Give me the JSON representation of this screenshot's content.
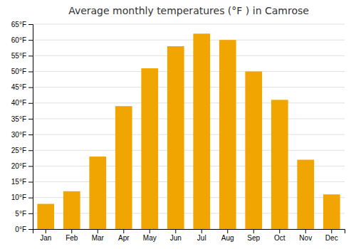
{
  "chart_data": {
    "type": "bar",
    "title": "Average monthly temperatures (°F ) in Camrose",
    "categories": [
      "Jan",
      "Feb",
      "Mar",
      "Apr",
      "May",
      "Jun",
      "Jul",
      "Aug",
      "Sep",
      "Oct",
      "Nov",
      "Dec"
    ],
    "values": [
      8,
      12,
      23,
      39,
      51,
      58,
      62,
      60,
      50,
      41,
      22,
      11
    ],
    "color": "#F0A500",
    "ylim": [
      0,
      65
    ],
    "yticks": [
      {
        "value": 0,
        "label": "0°F"
      },
      {
        "value": 5,
        "label": "5°F"
      },
      {
        "value": 10,
        "label": "10°F"
      },
      {
        "value": 15,
        "label": "15°F"
      },
      {
        "value": 20,
        "label": "20°F"
      },
      {
        "value": 25,
        "label": "25°F"
      },
      {
        "value": 30,
        "label": "30°F"
      },
      {
        "value": 35,
        "label": "35°F"
      },
      {
        "value": 40,
        "label": "40°F"
      },
      {
        "value": 45,
        "label": "45°F"
      },
      {
        "value": 50,
        "label": "50°F"
      },
      {
        "value": 55,
        "label": "55°F"
      },
      {
        "value": 60,
        "label": "60°F"
      },
      {
        "value": 65,
        "label": "65°F"
      }
    ],
    "grid": true
  }
}
